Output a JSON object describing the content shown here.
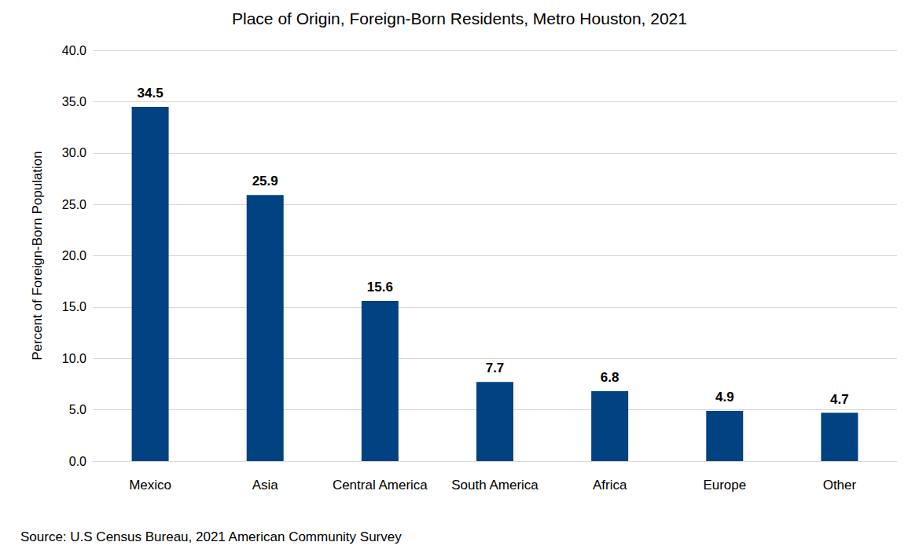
{
  "chart_data": {
    "type": "bar",
    "title": "Place of Origin, Foreign-Born Residents, Metro Houston, 2021",
    "y_label": "Percent of Foreign-Born Population",
    "annotations": [
      "Source: U.S Census Bureau, 2021 American Community Survey"
    ],
    "categories": [
      "Mexico",
      "Asia",
      "Central America",
      "South America",
      "Africa",
      "Europe",
      "Other"
    ],
    "values": [
      34.5,
      25.9,
      15.6,
      7.7,
      6.8,
      4.9,
      4.7
    ],
    "color": "#004282",
    "ylim": [
      0,
      40
    ],
    "yticks": [
      {
        "value": 0,
        "label": "0.0"
      },
      {
        "value": 5,
        "label": "5.0"
      },
      {
        "value": 10,
        "label": "10.0"
      },
      {
        "value": 15,
        "label": "15.0"
      },
      {
        "value": 20,
        "label": "20.0"
      },
      {
        "value": 25,
        "label": "25.0"
      },
      {
        "value": 30,
        "label": "30.0"
      },
      {
        "value": 35,
        "label": "35.0"
      },
      {
        "value": 40,
        "label": "40.0"
      }
    ],
    "grid": true,
    "data_labels": true
  }
}
